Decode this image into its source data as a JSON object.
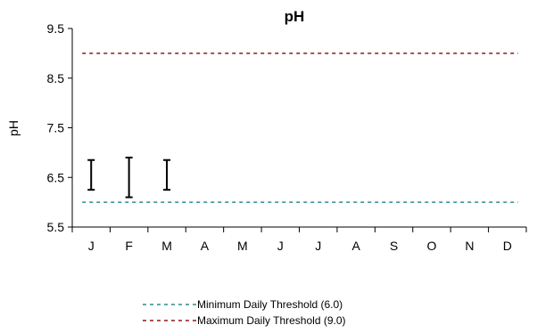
{
  "chart_data": {
    "type": "errorbar",
    "title": "pH",
    "xlabel": "",
    "ylabel": "pH",
    "categories": [
      "J",
      "F",
      "M",
      "A",
      "M",
      "J",
      "J",
      "A",
      "S",
      "O",
      "N",
      "D"
    ],
    "ylim": [
      5.5,
      9.5
    ],
    "yticks": [
      "5.5",
      "6.5",
      "7.5",
      "8.5",
      "9.5"
    ],
    "grid": false,
    "ranges": [
      {
        "category_index": 0,
        "low": 6.25,
        "high": 6.85
      },
      {
        "category_index": 1,
        "low": 6.1,
        "high": 6.9
      },
      {
        "category_index": 2,
        "low": 6.25,
        "high": 6.85
      }
    ],
    "thresholds": [
      {
        "name": "Minimum Daily Threshold (6.0)",
        "value": 6.0,
        "color": "#2e8b8b"
      },
      {
        "name": "Maximum Daily Threshold (9.0)",
        "value": 9.0,
        "color": "#8b1a1a"
      }
    ],
    "legend_placement": "bottom"
  }
}
